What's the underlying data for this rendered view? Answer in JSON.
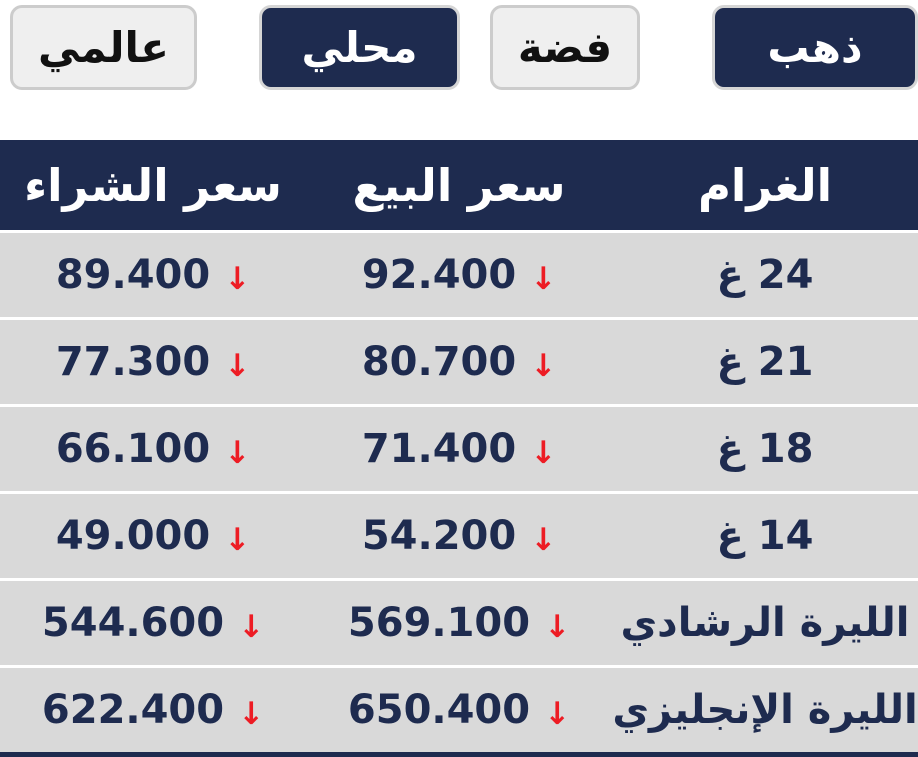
{
  "colors": {
    "navy": "#1e2b4f",
    "row_background": "#d9d9d9",
    "light_button_background": "#efefef",
    "light_button_border": "#cccccc",
    "arrow_red": "#ed1c24",
    "header_text": "#ffffff"
  },
  "tabs": {
    "gold": {
      "label": "ذهب",
      "active": true
    },
    "silver": {
      "label": "فضة",
      "active": false
    },
    "local": {
      "label": "محلي",
      "active": true
    },
    "global": {
      "label": "عالمي",
      "active": false
    }
  },
  "table": {
    "arrow_glyph": "↓",
    "headers": {
      "buy": "سعر الشراء",
      "sell": "سعر البيع",
      "gram": "الغرام"
    },
    "rows": [
      {
        "gram": "24 غ",
        "sell": "92.400",
        "buy": "89.400",
        "sell_trend": "down",
        "buy_trend": "down"
      },
      {
        "gram": "21 غ",
        "sell": "80.700",
        "buy": "77.300",
        "sell_trend": "down",
        "buy_trend": "down"
      },
      {
        "gram": "18 غ",
        "sell": "71.400",
        "buy": "66.100",
        "sell_trend": "down",
        "buy_trend": "down"
      },
      {
        "gram": "14 غ",
        "sell": "54.200",
        "buy": "49.000",
        "sell_trend": "down",
        "buy_trend": "down"
      },
      {
        "gram": "الليرة الرشادي",
        "sell": "569.100",
        "buy": "544.600",
        "sell_trend": "down",
        "buy_trend": "down"
      },
      {
        "gram": "الليرة الإنجليزي",
        "sell": "650.400",
        "buy": "622.400",
        "sell_trend": "down",
        "buy_trend": "down"
      }
    ]
  }
}
